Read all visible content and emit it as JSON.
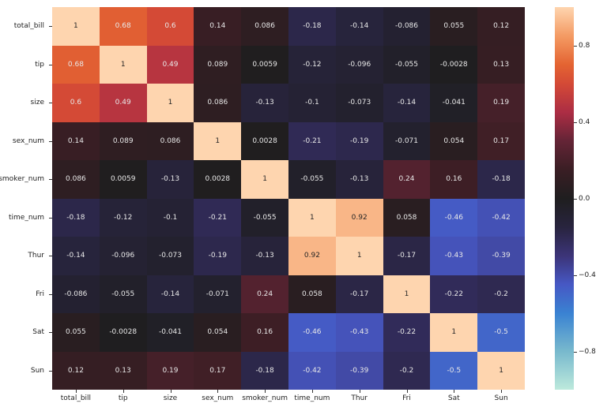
{
  "chart_data": {
    "type": "heatmap",
    "title": "",
    "xlabel": "",
    "ylabel": "",
    "x_labels": [
      "total_bill",
      "tip",
      "size",
      "sex_num",
      "smoker_num",
      "time_num",
      "Thur",
      "Fri",
      "Sat",
      "Sun"
    ],
    "y_labels": [
      "total_bill",
      "tip",
      "size",
      "sex_num",
      "smoker_num",
      "time_num",
      "Thur",
      "Fri",
      "Sat",
      "Sun"
    ],
    "values": [
      [
        1,
        0.68,
        0.6,
        0.14,
        0.086,
        -0.18,
        -0.14,
        -0.086,
        0.055,
        0.12
      ],
      [
        0.68,
        1,
        0.49,
        0.089,
        0.0059,
        -0.12,
        -0.096,
        -0.055,
        -0.0028,
        0.13
      ],
      [
        0.6,
        0.49,
        1,
        0.086,
        -0.13,
        -0.1,
        -0.073,
        -0.14,
        -0.041,
        0.19
      ],
      [
        0.14,
        0.089,
        0.086,
        1,
        0.0028,
        -0.21,
        -0.19,
        -0.071,
        0.054,
        0.17
      ],
      [
        0.086,
        0.0059,
        -0.13,
        0.0028,
        1,
        -0.055,
        -0.13,
        0.24,
        0.16,
        -0.18
      ],
      [
        -0.18,
        -0.12,
        -0.1,
        -0.21,
        -0.055,
        1,
        0.92,
        0.058,
        -0.46,
        -0.42
      ],
      [
        -0.14,
        -0.096,
        -0.073,
        -0.19,
        -0.13,
        0.92,
        1,
        -0.17,
        -0.43,
        -0.39
      ],
      [
        -0.086,
        -0.055,
        -0.14,
        -0.071,
        0.24,
        0.058,
        -0.17,
        1,
        -0.22,
        -0.2
      ],
      [
        0.055,
        -0.0028,
        -0.041,
        0.054,
        0.16,
        -0.46,
        -0.43,
        -0.22,
        1,
        -0.5
      ],
      [
        0.12,
        0.13,
        0.19,
        0.17,
        -0.18,
        -0.42,
        -0.39,
        -0.2,
        -0.5,
        1
      ]
    ],
    "colorbar": {
      "range": [
        -1,
        1
      ],
      "ticks": [
        0.8,
        0.4,
        0.0,
        -0.4,
        -0.8
      ],
      "tick_labels": [
        "0.8",
        "0.4",
        "0.0",
        "−0.4",
        "−0.8"
      ],
      "colormap": "icefire",
      "center": 0
    },
    "annotations": true,
    "grid": false,
    "legend_position": "right"
  }
}
